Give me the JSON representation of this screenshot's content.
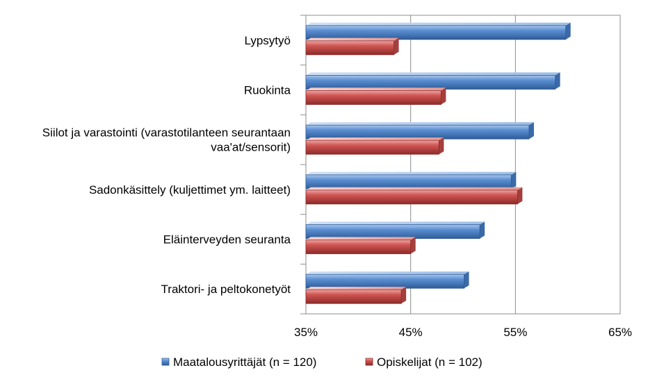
{
  "chart_data": {
    "type": "bar",
    "orientation": "horizontal",
    "categories": [
      "Lypsytyö",
      "Ruokinta",
      "Siilot ja varastointi (varastotilanteen seurantaan vaa'at/sensorit)",
      "Sadonkäsittely (kuljettimet ym. laitteet)",
      "Eläinterveyden seuranta",
      "Traktori- ja peltokonetyöt"
    ],
    "category_lines": [
      [
        "Lypsytyö"
      ],
      [
        "Ruokinta"
      ],
      [
        "Siilot ja varastointi (varastotilanteen seurantaan",
        "vaa'at/sensorit)"
      ],
      [
        "Sadonkäsittely (kuljettimet ym. laitteet)"
      ],
      [
        "Eläinterveyden seuranta"
      ],
      [
        "Traktori- ja peltokonetyöt"
      ]
    ],
    "series": [
      {
        "name": "Maatalousyrittäjät (n = 120)",
        "values": [
          59.8,
          58.8,
          56.3,
          54.6,
          51.6,
          50.1
        ],
        "color": "#4a7fc1"
      },
      {
        "name": "Opiskelijat (n = 102)",
        "values": [
          43.4,
          47.9,
          47.7,
          55.2,
          45.0,
          44.1
        ],
        "color": "#c0504d"
      }
    ],
    "xlim": [
      35,
      65
    ],
    "xticks": [
      "35%",
      "45%",
      "55%",
      "65%"
    ],
    "xtick_values": [
      35,
      45,
      55,
      65
    ],
    "grid": true,
    "legend": "bottom",
    "title": "",
    "xlabel": "",
    "ylabel": ""
  }
}
